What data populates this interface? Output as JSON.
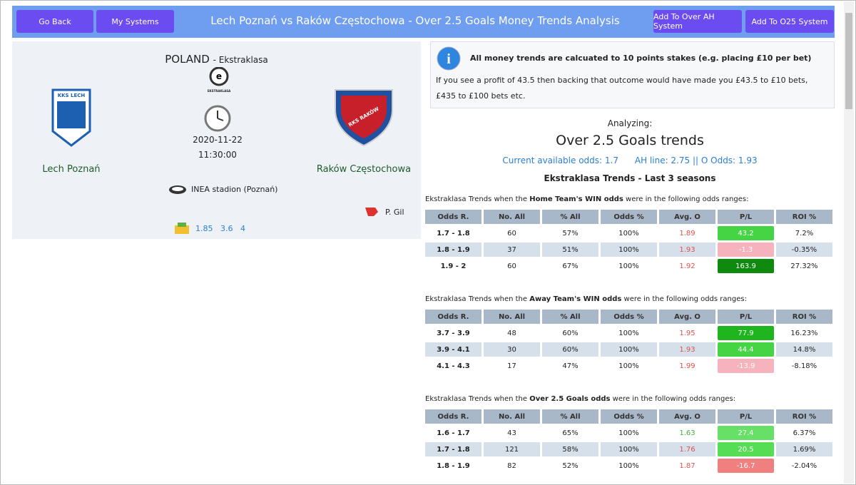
{
  "header": {
    "left_buttons": [
      "Go Back",
      "My Systems"
    ],
    "title": "Lech Poznań vs Raków Częstochowa - Over 2.5 Goals Money Trends Analysis",
    "right_buttons": [
      "Add To Over AH System",
      "Add To O25 System"
    ]
  },
  "match": {
    "country": "POLAND",
    "league": "- Ekstraklasa",
    "league_logo": "EKSTRAKLASA",
    "home_crest": "KKS LECH",
    "away_crest": "RKS RAKÓW",
    "date": "2020-11-22",
    "time": "11:30:00",
    "home": "Lech Poznań",
    "away": "Raków Częstochowa",
    "venue": "INEA stadion (Poznań)",
    "referee": "P. Gil",
    "odds": [
      1.85,
      3.6,
      4
    ]
  },
  "info": {
    "title": "All money trends are calcuated to 10 points stakes (e.g. placing £10 per bet)",
    "text": "If you see a profit of 43.5 then backing that outcome would have made you £43.5 to £10 bets, £435 to £100 bets etc."
  },
  "analysis": {
    "label": "Analyzing:",
    "title": "Over 2.5 Goals trends",
    "current_odds": "Current available odds: 1.7",
    "ah_line": "AH line: 2.75 || O Odds: 1.93",
    "subtitle": "Ekstraklasa Trends - Last 3 seasons"
  },
  "tables": [
    {
      "caption": [
        "Ekstraklasa Trends when the ",
        "Home Team's WIN odds",
        " were in the following odds ranges:"
      ],
      "headers": [
        "Odds R.",
        "No. All",
        "% All",
        "Odds %",
        "Avg. O",
        "P/L",
        "ROI %"
      ],
      "rows": [
        [
          "1.7 - 1.8",
          "60",
          "57%",
          "100%",
          "1.89",
          "43.2",
          "7.2%"
        ],
        [
          "1.8 - 1.9",
          "37",
          "51%",
          "100%",
          "1.93",
          "-1.3",
          "-0.35%"
        ],
        [
          "1.9 - 2",
          "60",
          "67%",
          "100%",
          "1.92",
          "163.9",
          "27.32%"
        ]
      ],
      "avg_colors": [
        "#e05050",
        "#e05050",
        "#e05050"
      ],
      "pl_colors": [
        "#44d444",
        "#f7b3bd",
        "#0f8a0f"
      ]
    },
    {
      "caption": [
        "Ekstraklasa Trends when the ",
        "Away Team's WIN odds",
        " were in the following odds ranges:"
      ],
      "headers": [
        "Odds R.",
        "No. All",
        "% All",
        "Odds %",
        "Avg. O",
        "P/L",
        "ROI %"
      ],
      "rows": [
        [
          "3.7 - 3.9",
          "48",
          "60%",
          "100%",
          "1.95",
          "77.9",
          "16.23%"
        ],
        [
          "3.9 - 4.1",
          "30",
          "60%",
          "100%",
          "1.93",
          "44.4",
          "14.8%"
        ],
        [
          "4.1 - 4.3",
          "17",
          "47%",
          "100%",
          "1.99",
          "-13.9",
          "-8.18%"
        ]
      ],
      "avg_colors": [
        "#e05050",
        "#e05050",
        "#e05050"
      ],
      "pl_colors": [
        "#1eb51e",
        "#44d444",
        "#f7b3bd"
      ]
    },
    {
      "caption": [
        "Ekstraklasa Trends when the ",
        "Over 2.5 Goals odds",
        " were in the following odds ranges:"
      ],
      "headers": [
        "Odds R.",
        "No. All",
        "% All",
        "Odds %",
        "Avg. O",
        "P/L",
        "ROI %"
      ],
      "rows": [
        [
          "1.6 - 1.7",
          "43",
          "65%",
          "100%",
          "1.63",
          "27.4",
          "6.37%"
        ],
        [
          "1.7 - 1.8",
          "121",
          "58%",
          "100%",
          "1.76",
          "20.5",
          "1.69%"
        ],
        [
          "1.8 - 1.9",
          "82",
          "52%",
          "100%",
          "1.87",
          "-16.7",
          "-2.04%"
        ]
      ],
      "avg_colors": [
        "#3cb43c",
        "#e05050",
        "#e05050"
      ],
      "pl_colors": [
        "#66e066",
        "#55dd55",
        "#f08080"
      ]
    }
  ]
}
